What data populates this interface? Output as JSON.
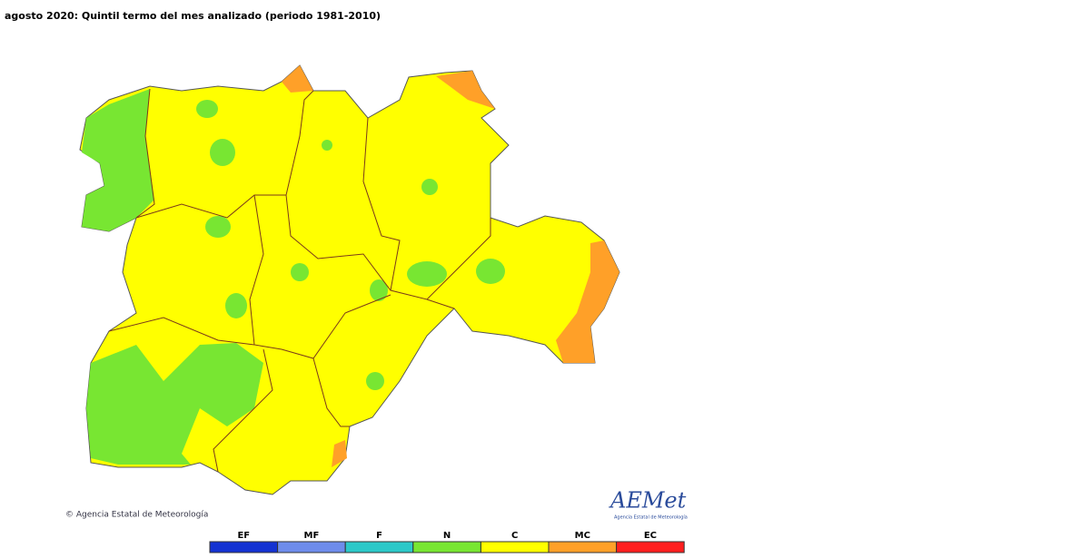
{
  "header": {
    "title": "agosto 2020: Quintil termo del mes analizado (periodo 1981-2010)"
  },
  "copyright": "© Agencia Estatal de Meteorología",
  "logo": {
    "name": "AEMet",
    "subtitle": "Agencia Estatal de Meteorología"
  },
  "legend": [
    {
      "label": "EF",
      "color": "#1432d2"
    },
    {
      "label": "MF",
      "color": "#6e8ceb"
    },
    {
      "label": "F",
      "color": "#2cc8c8"
    },
    {
      "label": "N",
      "color": "#78e632"
    },
    {
      "label": "C",
      "color": "#ffff00"
    },
    {
      "label": "MC",
      "color": "#ffa028"
    },
    {
      "label": "EC",
      "color": "#ff1e1e"
    }
  ]
}
